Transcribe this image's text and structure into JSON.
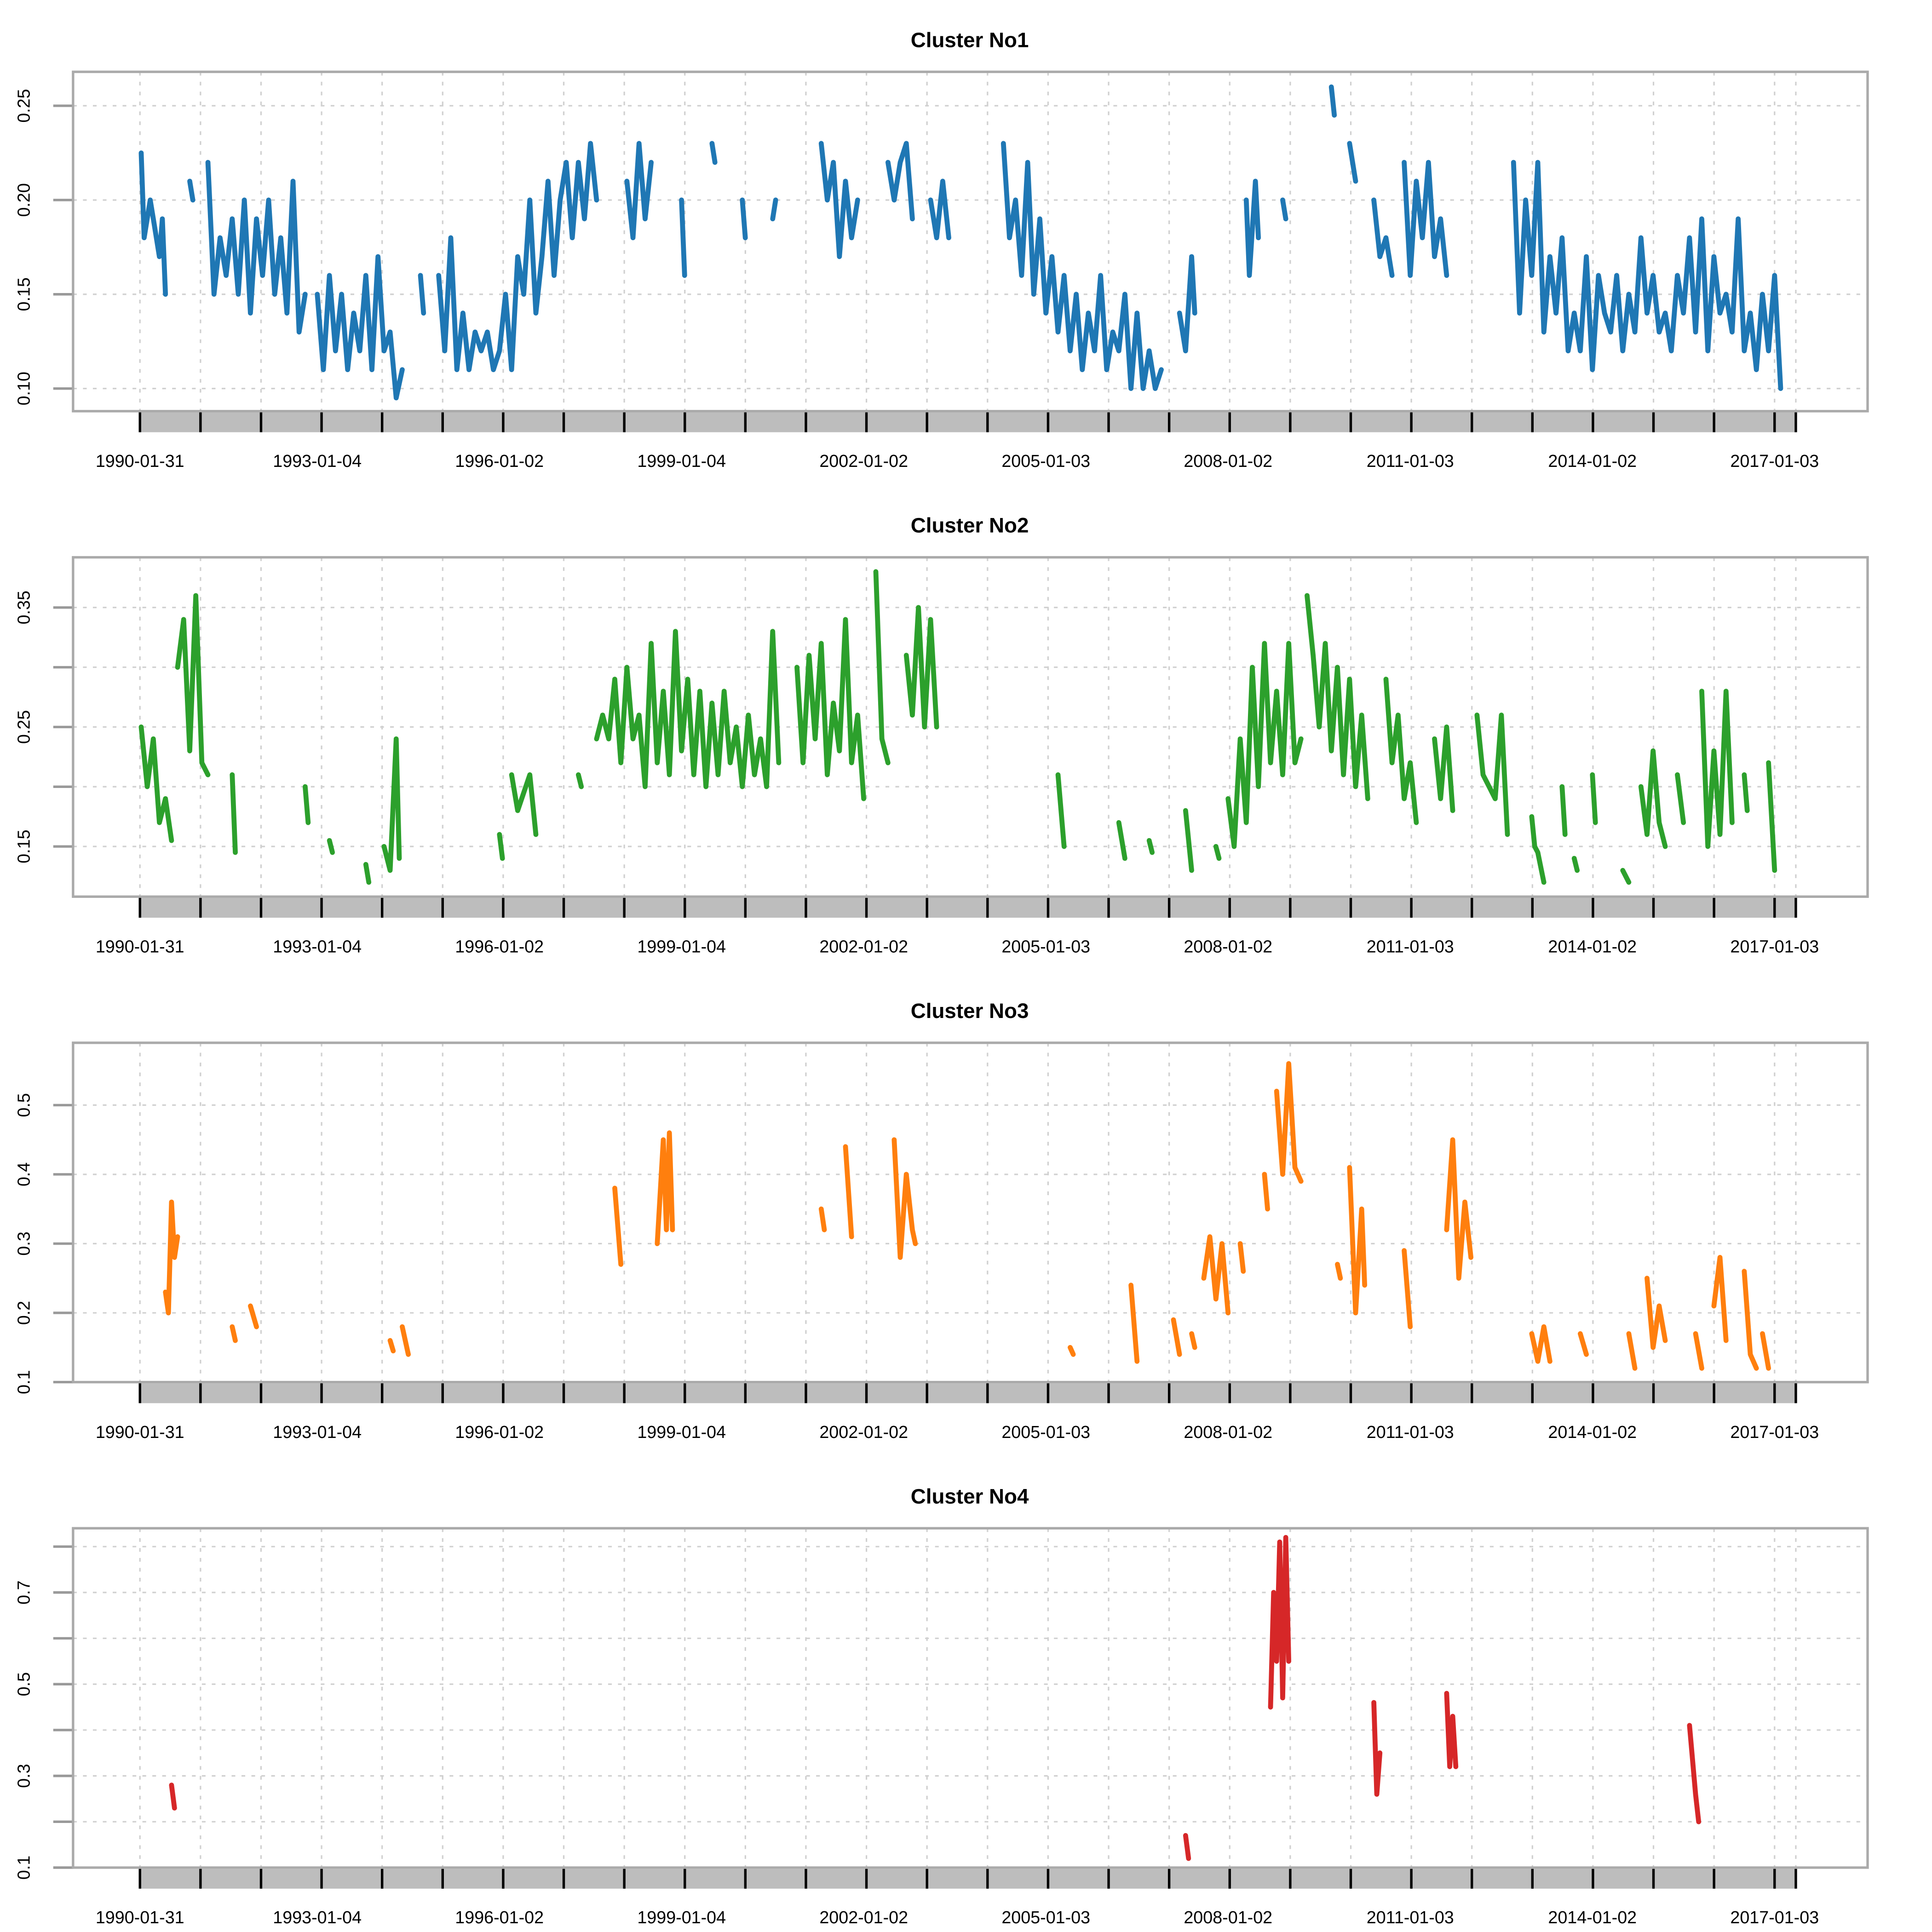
{
  "chart_data": [
    {
      "type": "line",
      "title": "Cluster No1",
      "color": "#1f77b4",
      "ylim": [
        0.088,
        0.268
      ],
      "yticks": [
        0.1,
        0.15,
        0.2,
        0.25
      ],
      "ytick_labels": [
        "0.10",
        "0.15",
        "0.20",
        "0.25"
      ],
      "segments": [
        [
          1990.1,
          0.225,
          1990.15,
          0.18,
          1990.25,
          0.2,
          1990.3,
          0.19,
          1990.4,
          0.17,
          1990.45,
          0.19,
          1990.5,
          0.15
        ],
        [
          1990.9,
          0.21,
          1990.95,
          0.2
        ],
        [
          1991.2,
          0.22,
          1991.3,
          0.15,
          1991.4,
          0.18,
          1991.5,
          0.16,
          1991.6,
          0.19,
          1991.7,
          0.15,
          1991.8,
          0.2,
          1991.9,
          0.14,
          1992.0,
          0.19,
          1992.1,
          0.16,
          1992.2,
          0.2,
          1992.3,
          0.15,
          1992.4,
          0.18,
          1992.5,
          0.14,
          1992.6,
          0.21,
          1992.7,
          0.13,
          1992.8,
          0.15
        ],
        [
          1993.0,
          0.15,
          1993.1,
          0.11,
          1993.2,
          0.16,
          1993.3,
          0.12,
          1993.4,
          0.15,
          1993.5,
          0.11,
          1993.6,
          0.14,
          1993.7,
          0.12,
          1993.8,
          0.16,
          1993.9,
          0.11,
          1994.0,
          0.17,
          1994.1,
          0.12,
          1994.2,
          0.13,
          1994.3,
          0.095,
          1994.4,
          0.11
        ],
        [
          1994.7,
          0.16,
          1994.75,
          0.14
        ],
        [
          1995.0,
          0.16,
          1995.1,
          0.12,
          1995.2,
          0.18,
          1995.3,
          0.11,
          1995.4,
          0.14,
          1995.5,
          0.11,
          1995.6,
          0.13,
          1995.7,
          0.12,
          1995.8,
          0.13,
          1995.9,
          0.11,
          1996.0,
          0.12,
          1996.1,
          0.15,
          1996.2,
          0.11,
          1996.3,
          0.17,
          1996.4,
          0.15,
          1996.5,
          0.2,
          1996.6,
          0.14,
          1996.7,
          0.17,
          1996.8,
          0.21,
          1996.9,
          0.16,
          1997.0,
          0.2,
          1997.1,
          0.22,
          1997.2,
          0.18,
          1997.3,
          0.22,
          1997.4,
          0.19,
          1997.5,
          0.23,
          1997.6,
          0.2
        ],
        [
          1998.1,
          0.21,
          1998.2,
          0.18,
          1998.3,
          0.23,
          1998.4,
          0.19,
          1998.5,
          0.22
        ],
        [
          1999.0,
          0.2,
          1999.05,
          0.16
        ],
        [
          1999.5,
          0.23,
          1999.55,
          0.22
        ],
        [
          2000.0,
          0.2,
          2000.05,
          0.18
        ],
        [
          2000.5,
          0.19,
          2000.55,
          0.2
        ],
        [
          2001.3,
          0.23,
          2001.4,
          0.2,
          2001.5,
          0.22,
          2001.6,
          0.17,
          2001.7,
          0.21,
          2001.8,
          0.18,
          2001.9,
          0.2
        ],
        [
          2002.4,
          0.22,
          2002.5,
          0.2,
          2002.6,
          0.22,
          2002.7,
          0.23,
          2002.8,
          0.19
        ],
        [
          2003.1,
          0.2,
          2003.2,
          0.18,
          2003.3,
          0.21,
          2003.4,
          0.18
        ],
        [
          2004.3,
          0.23,
          2004.4,
          0.18,
          2004.5,
          0.2,
          2004.6,
          0.16,
          2004.7,
          0.22,
          2004.8,
          0.15,
          2004.9,
          0.19,
          2005.0,
          0.14,
          2005.1,
          0.17,
          2005.2,
          0.13,
          2005.3,
          0.16,
          2005.4,
          0.12,
          2005.5,
          0.15,
          2005.6,
          0.11,
          2005.7,
          0.14,
          2005.8,
          0.12,
          2005.9,
          0.16,
          2006.0,
          0.11,
          2006.1,
          0.13,
          2006.2,
          0.12,
          2006.3,
          0.15,
          2006.4,
          0.1,
          2006.5,
          0.14,
          2006.6,
          0.1,
          2006.7,
          0.12,
          2006.8,
          0.1,
          2006.9,
          0.11
        ],
        [
          2007.2,
          0.14,
          2007.3,
          0.12,
          2007.4,
          0.17,
          2007.45,
          0.14
        ],
        [
          2008.3,
          0.2,
          2008.35,
          0.16,
          2008.45,
          0.21,
          2008.5,
          0.18
        ],
        [
          2008.9,
          0.2,
          2008.95,
          0.19
        ],
        [
          2009.7,
          0.26,
          2009.75,
          0.245
        ],
        [
          2010.0,
          0.23,
          2010.1,
          0.21
        ],
        [
          2010.4,
          0.2,
          2010.5,
          0.17,
          2010.6,
          0.18,
          2010.7,
          0.16
        ],
        [
          2010.9,
          0.22,
          2011.0,
          0.16,
          2011.1,
          0.21,
          2011.2,
          0.18,
          2011.3,
          0.22,
          2011.4,
          0.17,
          2011.5,
          0.19,
          2011.6,
          0.16
        ],
        [
          2012.7,
          0.22,
          2012.8,
          0.14,
          2012.9,
          0.2,
          2013.0,
          0.16,
          2013.1,
          0.22,
          2013.2,
          0.13,
          2013.3,
          0.17,
          2013.4,
          0.14,
          2013.5,
          0.18,
          2013.6,
          0.12,
          2013.7,
          0.14,
          2013.8,
          0.12,
          2013.9,
          0.17,
          2014.0,
          0.11,
          2014.1,
          0.16,
          2014.2,
          0.14,
          2014.3,
          0.13,
          2014.4,
          0.16,
          2014.5,
          0.12,
          2014.6,
          0.15,
          2014.7,
          0.13,
          2014.8,
          0.18,
          2014.9,
          0.14,
          2015.0,
          0.16,
          2015.1,
          0.13,
          2015.2,
          0.14,
          2015.3,
          0.12,
          2015.4,
          0.16,
          2015.5,
          0.14,
          2015.6,
          0.18,
          2015.7,
          0.13,
          2015.8,
          0.19,
          2015.9,
          0.12,
          2016.0,
          0.17,
          2016.1,
          0.14,
          2016.2,
          0.15,
          2016.3,
          0.13,
          2016.4,
          0.19,
          2016.5,
          0.12,
          2016.6,
          0.14,
          2016.7,
          0.11,
          2016.8,
          0.15,
          2016.9,
          0.12,
          2017.0,
          0.16,
          2017.1,
          0.1
        ]
      ]
    },
    {
      "type": "line",
      "title": "Cluster No2",
      "color": "#2ca02c",
      "ylim": [
        0.108,
        0.392
      ],
      "yticks": [
        0.15,
        0.2,
        0.25,
        0.3,
        0.35
      ],
      "ytick_labels": [
        "0.15",
        "",
        "0.25",
        "",
        "0.35"
      ],
      "segments": [
        [
          1990.1,
          0.25,
          1990.2,
          0.2,
          1990.3,
          0.24,
          1990.4,
          0.17,
          1990.5,
          0.19,
          1990.6,
          0.155
        ],
        [
          1990.7,
          0.3,
          1990.8,
          0.34,
          1990.9,
          0.23,
          1991.0,
          0.36,
          1991.1,
          0.22,
          1991.2,
          0.21
        ],
        [
          1991.6,
          0.21,
          1991.65,
          0.145
        ],
        [
          1992.8,
          0.2,
          1992.85,
          0.17
        ],
        [
          1993.2,
          0.155,
          1993.25,
          0.145
        ],
        [
          1993.8,
          0.135,
          1993.85,
          0.12
        ],
        [
          1994.1,
          0.15,
          1994.2,
          0.13,
          1994.3,
          0.24,
          1994.35,
          0.14
        ],
        [
          1996.0,
          0.16,
          1996.05,
          0.14
        ],
        [
          1996.2,
          0.21,
          1996.3,
          0.18,
          1996.5,
          0.21,
          1996.6,
          0.16
        ],
        [
          1997.3,
          0.21,
          1997.35,
          0.2
        ],
        [
          1997.6,
          0.24,
          1997.7,
          0.26,
          1997.8,
          0.24,
          1997.9,
          0.29,
          1998.0,
          0.22,
          1998.1,
          0.3,
          1998.2,
          0.24,
          1998.3,
          0.26,
          1998.4,
          0.2,
          1998.5,
          0.32,
          1998.6,
          0.22,
          1998.7,
          0.28,
          1998.8,
          0.21,
          1998.9,
          0.33,
          1999.0,
          0.23,
          1999.1,
          0.29,
          1999.2,
          0.21,
          1999.3,
          0.28,
          1999.4,
          0.2,
          1999.5,
          0.27,
          1999.6,
          0.21,
          1999.7,
          0.28,
          1999.8,
          0.22,
          1999.9,
          0.25,
          2000.0,
          0.2,
          2000.1,
          0.26,
          2000.2,
          0.21,
          2000.3,
          0.24,
          2000.4,
          0.2,
          2000.5,
          0.33,
          2000.6,
          0.22
        ],
        [
          2000.9,
          0.3,
          2001.0,
          0.22,
          2001.1,
          0.31,
          2001.2,
          0.24,
          2001.3,
          0.32,
          2001.4,
          0.21,
          2001.5,
          0.27,
          2001.6,
          0.23,
          2001.7,
          0.34,
          2001.8,
          0.22,
          2001.9,
          0.26,
          2002.0,
          0.19
        ],
        [
          2002.2,
          0.38,
          2002.3,
          0.24,
          2002.4,
          0.22
        ],
        [
          2002.7,
          0.31,
          2002.8,
          0.26,
          2002.9,
          0.35,
          2003.0,
          0.25,
          2003.1,
          0.34,
          2003.2,
          0.25
        ],
        [
          2005.2,
          0.21,
          2005.3,
          0.15
        ],
        [
          2006.2,
          0.17,
          2006.3,
          0.14
        ],
        [
          2006.7,
          0.155,
          2006.75,
          0.145
        ],
        [
          2007.3,
          0.18,
          2007.4,
          0.13
        ],
        [
          2007.8,
          0.15,
          2007.85,
          0.14
        ],
        [
          2008.0,
          0.19,
          2008.1,
          0.15,
          2008.2,
          0.24,
          2008.3,
          0.17,
          2008.4,
          0.3,
          2008.5,
          0.2,
          2008.6,
          0.32,
          2008.7,
          0.22,
          2008.8,
          0.28,
          2008.9,
          0.21,
          2009.0,
          0.32,
          2009.1,
          0.22,
          2009.2,
          0.24
        ],
        [
          2009.3,
          0.36,
          2009.4,
          0.31,
          2009.5,
          0.25,
          2009.6,
          0.32,
          2009.7,
          0.23,
          2009.8,
          0.3,
          2009.9,
          0.21,
          2010.0,
          0.29,
          2010.1,
          0.2,
          2010.2,
          0.26,
          2010.3,
          0.19
        ],
        [
          2010.6,
          0.29,
          2010.7,
          0.22,
          2010.8,
          0.26,
          2010.9,
          0.19,
          2011.0,
          0.22,
          2011.1,
          0.17
        ],
        [
          2011.4,
          0.24,
          2011.5,
          0.19,
          2011.6,
          0.25,
          2011.7,
          0.18
        ],
        [
          2012.1,
          0.26,
          2012.2,
          0.21,
          2012.3,
          0.2,
          2012.4,
          0.19,
          2012.5,
          0.26,
          2012.6,
          0.16
        ],
        [
          2013.0,
          0.175,
          2013.05,
          0.15,
          2013.1,
          0.145,
          2013.2,
          0.12
        ],
        [
          2013.5,
          0.2,
          2013.55,
          0.16
        ],
        [
          2013.7,
          0.14,
          2013.75,
          0.13
        ],
        [
          2014.0,
          0.21,
          2014.05,
          0.17
        ],
        [
          2014.5,
          0.13,
          2014.6,
          0.12
        ],
        [
          2014.8,
          0.2,
          2014.9,
          0.16,
          2015.0,
          0.23,
          2015.1,
          0.17,
          2015.2,
          0.15
        ],
        [
          2015.4,
          0.21,
          2015.5,
          0.17
        ],
        [
          2015.8,
          0.28,
          2015.9,
          0.15,
          2016.0,
          0.23,
          2016.1,
          0.16,
          2016.2,
          0.28,
          2016.3,
          0.17
        ],
        [
          2016.5,
          0.21,
          2016.55,
          0.18
        ],
        [
          2016.9,
          0.22,
          2017.0,
          0.13
        ]
      ]
    },
    {
      "type": "line",
      "title": "Cluster No3",
      "color": "#ff7f0e",
      "ylim": [
        0.1,
        0.59
      ],
      "yticks": [
        0.1,
        0.2,
        0.3,
        0.4,
        0.5
      ],
      "ytick_labels": [
        "0.1",
        "0.2",
        "0.3",
        "0.4",
        "0.5"
      ],
      "segments": [
        [
          1990.5,
          0.23,
          1990.55,
          0.2,
          1990.6,
          0.36,
          1990.65,
          0.28,
          1990.7,
          0.31
        ],
        [
          1991.6,
          0.18,
          1991.65,
          0.16
        ],
        [
          1991.9,
          0.21,
          1992.0,
          0.18
        ],
        [
          1994.2,
          0.16,
          1994.25,
          0.145
        ],
        [
          1994.4,
          0.18,
          1994.5,
          0.14
        ],
        [
          1997.9,
          0.38,
          1998.0,
          0.27
        ],
        [
          1998.6,
          0.3,
          1998.7,
          0.45,
          1998.75,
          0.32,
          1998.8,
          0.46,
          1998.85,
          0.32
        ],
        [
          2001.3,
          0.35,
          2001.35,
          0.32
        ],
        [
          2001.7,
          0.44,
          2001.8,
          0.31
        ],
        [
          2002.5,
          0.45,
          2002.6,
          0.28,
          2002.7,
          0.4,
          2002.8,
          0.32,
          2002.85,
          0.3
        ],
        [
          2005.4,
          0.15,
          2005.45,
          0.14
        ],
        [
          2006.4,
          0.24,
          2006.5,
          0.13
        ],
        [
          2007.1,
          0.19,
          2007.2,
          0.14
        ],
        [
          2007.4,
          0.17,
          2007.45,
          0.15
        ],
        [
          2007.6,
          0.25,
          2007.7,
          0.31,
          2007.8,
          0.22,
          2007.9,
          0.3,
          2008.0,
          0.2
        ],
        [
          2008.2,
          0.3,
          2008.25,
          0.26
        ],
        [
          2008.6,
          0.4,
          2008.65,
          0.35
        ],
        [
          2008.8,
          0.52,
          2008.9,
          0.4,
          2009.0,
          0.56,
          2009.1,
          0.41,
          2009.2,
          0.39
        ],
        [
          2009.8,
          0.27,
          2009.85,
          0.25
        ],
        [
          2010.0,
          0.41,
          2010.1,
          0.2,
          2010.2,
          0.35,
          2010.25,
          0.24
        ],
        [
          2010.9,
          0.29,
          2011.0,
          0.18
        ],
        [
          2011.6,
          0.32,
          2011.7,
          0.45,
          2011.8,
          0.25,
          2011.9,
          0.36,
          2012.0,
          0.28
        ],
        [
          2013.0,
          0.17,
          2013.1,
          0.13,
          2013.2,
          0.18,
          2013.3,
          0.13
        ],
        [
          2013.8,
          0.17,
          2013.9,
          0.14
        ],
        [
          2014.6,
          0.17,
          2014.7,
          0.12
        ],
        [
          2014.9,
          0.25,
          2015.0,
          0.15,
          2015.1,
          0.21,
          2015.2,
          0.16
        ],
        [
          2015.7,
          0.17,
          2015.8,
          0.12
        ],
        [
          2016.0,
          0.21,
          2016.1,
          0.28,
          2016.2,
          0.16
        ],
        [
          2016.5,
          0.26,
          2016.6,
          0.14,
          2016.7,
          0.12
        ],
        [
          2016.8,
          0.17,
          2016.9,
          0.12
        ]
      ]
    },
    {
      "type": "line",
      "title": "Cluster No4",
      "color": "#d62728",
      "ylim": [
        0.1,
        0.84
      ],
      "yticks": [
        0.1,
        0.2,
        0.3,
        0.4,
        0.5,
        0.6,
        0.7,
        0.8
      ],
      "ytick_labels": [
        "0.1",
        "",
        "0.3",
        "",
        "0.5",
        "",
        "0.7",
        ""
      ],
      "segments": [
        [
          1990.6,
          0.28,
          1990.65,
          0.23
        ],
        [
          2007.3,
          0.17,
          2007.35,
          0.12
        ],
        [
          2008.7,
          0.45,
          2008.75,
          0.7,
          2008.8,
          0.55,
          2008.85,
          0.81,
          2008.9,
          0.47,
          2008.95,
          0.82,
          2009.0,
          0.55
        ],
        [
          2010.4,
          0.46,
          2010.45,
          0.26,
          2010.5,
          0.35
        ],
        [
          2011.6,
          0.48,
          2011.65,
          0.32,
          2011.7,
          0.43,
          2011.75,
          0.32
        ],
        [
          2015.6,
          0.41,
          2015.7,
          0.26,
          2015.75,
          0.2
        ]
      ]
    }
  ],
  "x_tick_labels": [
    "1990-01-31",
    "1993-01-04",
    "1996-01-02",
    "1999-01-04",
    "2002-01-02",
    "2005-01-03",
    "2008-01-02",
    "2011-01-03",
    "2014-01-02",
    "2017-01-03"
  ]
}
